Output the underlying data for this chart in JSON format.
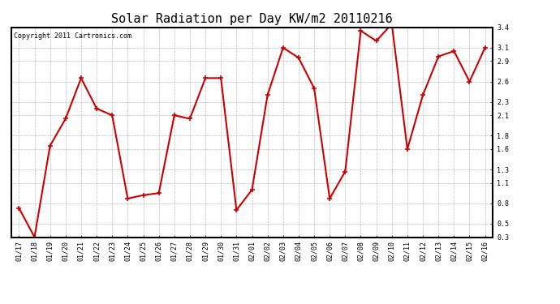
{
  "title": "Solar Radiation per Day KW/m2 20110216",
  "copyright_text": "Copyright 2011 Cartronics.com",
  "dates": [
    "01/17",
    "01/18",
    "01/19",
    "01/20",
    "01/21",
    "01/22",
    "01/23",
    "01/24",
    "01/25",
    "01/26",
    "01/27",
    "01/28",
    "01/29",
    "01/30",
    "01/31",
    "02/01",
    "02/02",
    "02/03",
    "02/04",
    "02/05",
    "02/06",
    "02/07",
    "02/08",
    "02/09",
    "02/10",
    "02/11",
    "02/12",
    "02/13",
    "02/14",
    "02/15",
    "02/16"
  ],
  "values": [
    0.73,
    0.3,
    1.65,
    2.05,
    2.65,
    2.2,
    2.1,
    0.87,
    0.92,
    0.95,
    2.1,
    2.05,
    2.65,
    2.65,
    0.7,
    1.0,
    2.4,
    3.1,
    2.95,
    2.5,
    0.87,
    1.27,
    3.35,
    3.2,
    3.45,
    1.6,
    2.4,
    2.97,
    3.05,
    2.6,
    3.1
  ],
  "line_color": "#cc0000",
  "marker": "+",
  "marker_size": 4,
  "line_width": 1.5,
  "ylim": [
    0.3,
    3.4
  ],
  "yticks": [
    0.3,
    0.5,
    0.8,
    1.1,
    1.3,
    1.6,
    1.8,
    2.1,
    2.3,
    2.6,
    2.9,
    3.1,
    3.4
  ],
  "background_color": "#ffffff",
  "plot_bg_color": "#ffffff",
  "grid_color": "#bbbbbb",
  "title_fontsize": 11,
  "tick_fontsize": 6,
  "copyright_fontsize": 6
}
